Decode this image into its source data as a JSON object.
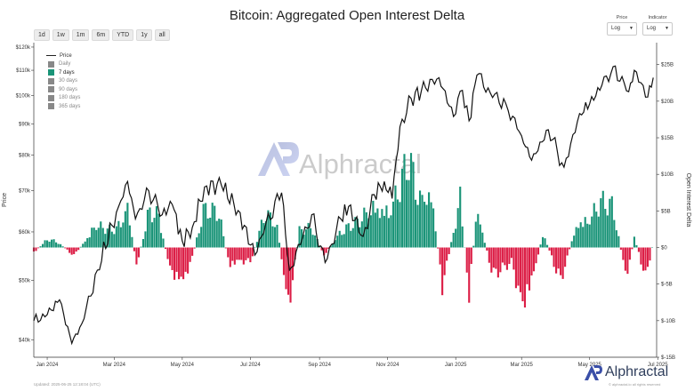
{
  "title": "Bitcoin: Aggregated Open Interest Delta",
  "timeframes": [
    "1d",
    "1w",
    "1m",
    "6m",
    "YTD",
    "1y",
    "all"
  ],
  "controls": {
    "price": {
      "label": "Price",
      "value": "Log"
    },
    "indicator": {
      "label": "Indicator",
      "value": "Log"
    }
  },
  "legend": [
    {
      "name": "Price",
      "type": "line",
      "color": "#222222",
      "active": true
    },
    {
      "name": "Daily",
      "type": "swatch",
      "color": "#888888",
      "active": false
    },
    {
      "name": "7 days",
      "type": "swatch",
      "color": "#1a9478",
      "active": true
    },
    {
      "name": "30 days",
      "type": "swatch",
      "color": "#888888",
      "active": false
    },
    {
      "name": "90 days",
      "type": "swatch",
      "color": "#888888",
      "active": false
    },
    {
      "name": "180 days",
      "type": "swatch",
      "color": "#888888",
      "active": false
    },
    {
      "name": "365 days",
      "type": "swatch",
      "color": "#888888",
      "active": false
    }
  ],
  "watermark": "Alphractal",
  "brand": "Alphractal",
  "updated": "Updated: 2025-06-25 12:18:04 (UTC)",
  "copyright": "© alphractal.io all rights reserved",
  "colors": {
    "positive": "#1a9478",
    "negative": "#dc1e46",
    "price": "#111111",
    "accent": "#3a4fa8"
  },
  "chart_data": {
    "type": "bar+line",
    "x_range": [
      "2023-12-20",
      "2025-06-30"
    ],
    "x_ticks": [
      "Jan 2024",
      "Mar 2024",
      "May 2024",
      "Jul 2024",
      "Sep 2024",
      "Nov 2024",
      "Jan 2025",
      "Mar 2025",
      "May 2025",
      "Jul 2025"
    ],
    "x_tick_dates": [
      "2024-01-01",
      "2024-03-01",
      "2024-05-01",
      "2024-07-01",
      "2024-09-01",
      "2024-11-01",
      "2025-01-01",
      "2025-03-01",
      "2025-05-01",
      "2025-07-01"
    ],
    "left_axis": {
      "label": "Price",
      "scale": "log",
      "range": [
        37500,
        122000
      ],
      "ticks": [
        40000,
        50000,
        60000,
        70000,
        80000,
        90000,
        100000,
        110000,
        120000
      ],
      "tick_labels": [
        "$40k",
        "$50k",
        "$60k",
        "$70k",
        "$80k",
        "$90k",
        "$100k",
        "$110k",
        "$120k"
      ]
    },
    "right_axis": {
      "label": "Open Interest Delta",
      "range": [
        -15,
        28
      ],
      "ticks": [
        -15,
        -10,
        -5,
        0,
        5,
        10,
        15,
        20,
        25
      ],
      "tick_labels": [
        "$-15B",
        "$-10B",
        "$-5B",
        "$0",
        "$5B",
        "$10B",
        "$15B",
        "$20B",
        "$25B"
      ]
    },
    "series": [
      {
        "name": "Price",
        "kind": "line",
        "points": [
          [
            "2023-12-20",
            43000
          ],
          [
            "2024-01-01",
            44000
          ],
          [
            "2024-01-12",
            46500
          ],
          [
            "2024-01-23",
            39500
          ],
          [
            "2024-02-01",
            42500
          ],
          [
            "2024-02-15",
            52000
          ],
          [
            "2024-02-28",
            61500
          ],
          [
            "2024-03-05",
            66000
          ],
          [
            "2024-03-13",
            72500
          ],
          [
            "2024-03-20",
            63000
          ],
          [
            "2024-04-01",
            70000
          ],
          [
            "2024-04-13",
            64000
          ],
          [
            "2024-04-22",
            66500
          ],
          [
            "2024-05-01",
            58000
          ],
          [
            "2024-05-10",
            61000
          ],
          [
            "2024-05-21",
            71000
          ],
          [
            "2024-06-05",
            71500
          ],
          [
            "2024-06-20",
            65000
          ],
          [
            "2024-07-05",
            55000
          ],
          [
            "2024-07-15",
            62000
          ],
          [
            "2024-07-29",
            69500
          ],
          [
            "2024-08-05",
            52000
          ],
          [
            "2024-08-25",
            64000
          ],
          [
            "2024-09-06",
            53500
          ],
          [
            "2024-09-20",
            63000
          ],
          [
            "2024-09-27",
            66000
          ],
          [
            "2024-10-10",
            59000
          ],
          [
            "2024-10-20",
            69000
          ],
          [
            "2024-10-29",
            72500
          ],
          [
            "2024-11-05",
            68000
          ],
          [
            "2024-11-12",
            89000
          ],
          [
            "2024-11-22",
            99000
          ],
          [
            "2024-12-05",
            103000
          ],
          [
            "2024-12-17",
            107000
          ],
          [
            "2024-12-30",
            92500
          ],
          [
            "2025-01-07",
            102000
          ],
          [
            "2025-01-13",
            91000
          ],
          [
            "2025-01-20",
            108000
          ],
          [
            "2025-02-01",
            101000
          ],
          [
            "2025-02-15",
            97000
          ],
          [
            "2025-03-01",
            86000
          ],
          [
            "2025-03-10",
            78500
          ],
          [
            "2025-03-25",
            88000
          ],
          [
            "2025-04-08",
            76500
          ],
          [
            "2025-04-22",
            93500
          ],
          [
            "2025-05-01",
            97000
          ],
          [
            "2025-05-12",
            104000
          ],
          [
            "2025-05-22",
            111500
          ],
          [
            "2025-06-05",
            101500
          ],
          [
            "2025-06-10",
            110000
          ],
          [
            "2025-06-22",
            99500
          ],
          [
            "2025-06-27",
            107000
          ]
        ]
      },
      {
        "name": "7 days",
        "kind": "bar",
        "step_days": 2,
        "points": [
          [
            "2023-12-20",
            -1.0
          ],
          [
            "2024-01-01",
            1.5
          ],
          [
            "2024-01-10",
            1.0
          ],
          [
            "2024-01-25",
            -1.5
          ],
          [
            "2024-02-05",
            1.5
          ],
          [
            "2024-02-13",
            4.0
          ],
          [
            "2024-02-20",
            3.5
          ],
          [
            "2024-02-28",
            3.0
          ],
          [
            "2024-03-06",
            4.0
          ],
          [
            "2024-03-13",
            7.5
          ],
          [
            "2024-03-21",
            -3.5
          ],
          [
            "2024-04-01",
            6.5
          ],
          [
            "2024-04-10",
            5.5
          ],
          [
            "2024-04-20",
            -4.0
          ],
          [
            "2024-04-30",
            -6.5
          ],
          [
            "2024-05-08",
            -3.5
          ],
          [
            "2024-05-20",
            6.5
          ],
          [
            "2024-06-03",
            6.5
          ],
          [
            "2024-06-12",
            -3.5
          ],
          [
            "2024-06-20",
            -2.5
          ],
          [
            "2024-07-01",
            -2.5
          ],
          [
            "2024-07-15",
            6.5
          ],
          [
            "2024-07-25",
            4.0
          ],
          [
            "2024-08-04",
            -11.5
          ],
          [
            "2024-08-14",
            3.0
          ],
          [
            "2024-08-25",
            3.5
          ],
          [
            "2024-09-05",
            -1.5
          ],
          [
            "2024-09-20",
            3.0
          ],
          [
            "2024-10-05",
            4.5
          ],
          [
            "2024-10-20",
            7.5
          ],
          [
            "2024-11-03",
            6.5
          ],
          [
            "2024-11-11",
            10.5
          ],
          [
            "2024-11-20",
            15.5
          ],
          [
            "2024-11-30",
            9.0
          ],
          [
            "2024-12-10",
            10.0
          ],
          [
            "2024-12-20",
            -7.0
          ],
          [
            "2025-01-05",
            8.5
          ],
          [
            "2025-01-13",
            -8.5
          ],
          [
            "2025-01-20",
            7.0
          ],
          [
            "2025-02-03",
            -5.0
          ],
          [
            "2025-02-20",
            -2.5
          ],
          [
            "2025-03-02",
            -11.0
          ],
          [
            "2025-03-10",
            -6.5
          ],
          [
            "2025-03-20",
            2.5
          ],
          [
            "2025-04-05",
            -6.0
          ],
          [
            "2025-04-20",
            4.5
          ],
          [
            "2025-05-01",
            5.0
          ],
          [
            "2025-05-10",
            8.0
          ],
          [
            "2025-05-22",
            7.5
          ],
          [
            "2025-06-03",
            -6.0
          ],
          [
            "2025-06-10",
            2.0
          ],
          [
            "2025-06-20",
            -5.5
          ],
          [
            "2025-06-27",
            1.0
          ]
        ]
      }
    ],
    "grid": false,
    "legend_position": "top-left"
  }
}
